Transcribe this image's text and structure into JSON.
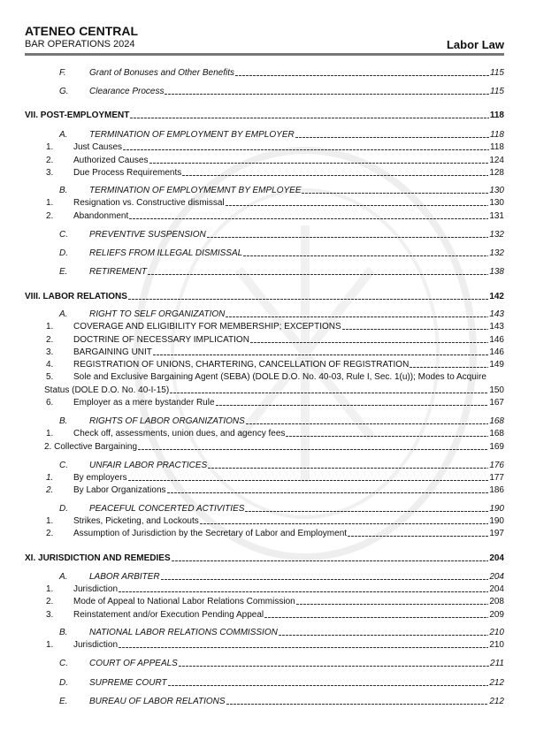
{
  "header": {
    "org": "ATENEO CENTRAL",
    "sub": "BAR OPERATIONS 2024",
    "subject": "Labor Law"
  },
  "entries": [
    {
      "t": "sec",
      "m": "F.",
      "l": "Grant of Bonuses and Other Benefits",
      "p": "115"
    },
    {
      "t": "sec",
      "m": "G.",
      "l": "Clearance Process",
      "p": "115"
    },
    {
      "t": "part",
      "m": "",
      "l": "VII. POST-EMPLOYMENT",
      "p": "118"
    },
    {
      "t": "sec",
      "m": "A.",
      "l": "TERMINATION OF EMPLOYMENT BY EMPLOYER",
      "p": "118"
    },
    {
      "t": "num",
      "m": "1.",
      "l": "Just Causes",
      "p": "118"
    },
    {
      "t": "num",
      "m": "2.",
      "l": "Authorized Causes",
      "p": "124"
    },
    {
      "t": "num",
      "m": "3.",
      "l": "Due Process Requirements",
      "p": "128"
    },
    {
      "t": "sec",
      "m": "B.",
      "l": "TERMINATION OF EMPLOYMEMNT BY EMPLOYEE",
      "p": "130"
    },
    {
      "t": "num",
      "m": "1.",
      "l": "Resignation vs. Constructive dismissal",
      "p": "130"
    },
    {
      "t": "num",
      "m": "2.",
      "l": "Abandonment",
      "p": "131"
    },
    {
      "t": "sec",
      "m": "C.",
      "l": "PREVENTIVE SUSPENSION",
      "p": "132"
    },
    {
      "t": "sec",
      "m": "D.",
      "l": "RELIEFS FROM ILLEGAL DISMISSAL",
      "p": "132"
    },
    {
      "t": "sec",
      "m": "E.",
      "l": "RETIREMENT",
      "p": "138"
    },
    {
      "t": "part",
      "m": "",
      "l": "VIII. LABOR RELATIONS",
      "p": "142"
    },
    {
      "t": "sec",
      "m": "A.",
      "l": "RIGHT TO SELF ORGANIZATION",
      "p": "143"
    },
    {
      "t": "num",
      "m": "1.",
      "l": "COVERAGE AND ELIGIBILITY FOR MEMBERSHIP; EXCEPTIONS",
      "p": "143"
    },
    {
      "t": "num",
      "m": "2.",
      "l": "DOCTRINE OF NECESSARY IMPLICATION",
      "p": "146"
    },
    {
      "t": "num",
      "m": "3.",
      "l": "BARGAINING UNIT",
      "p": "146"
    },
    {
      "t": "num",
      "m": "4.",
      "l": "REGISTRATION OF UNIONS, CHARTERING, CANCELLATION OF REGISTRATION",
      "p": "149"
    },
    {
      "t": "wrap1",
      "m": "5.",
      "l": "Sole and Exclusive Bargaining Agent (SEBA) (DOLE D.O. No. 40-03, Rule I, Sec. 1(u)); Modes to Acquire",
      "p": ""
    },
    {
      "t": "wrap2",
      "m": "",
      "l": "Status (DOLE D.O. No. 40-I-15)",
      "p": "150"
    },
    {
      "t": "num",
      "m": "6.",
      "l": "Employer as a mere bystander Rule",
      "p": "167"
    },
    {
      "t": "sec",
      "m": "B.",
      "l": "RIGHTS OF LABOR ORGANIZATIONS",
      "p": "168"
    },
    {
      "t": "num",
      "m": "1.",
      "l": "Check off, assessments, union dues, and agency fees",
      "p": "168"
    },
    {
      "t": "wrap2",
      "m": "",
      "l": "2. Collective Bargaining",
      "p": "169"
    },
    {
      "t": "sec",
      "m": "C.",
      "l": "UNFAIR LABOR PRACTICES",
      "p": "176"
    },
    {
      "t": "numi",
      "m": "1.",
      "l": "By employers",
      "p": "177"
    },
    {
      "t": "numi",
      "m": "2.",
      "l": "By Labor Organizations",
      "p": "186"
    },
    {
      "t": "sec",
      "m": "D.",
      "l": "PEACEFUL CONCERTED ACTIVITIES",
      "p": "190"
    },
    {
      "t": "num",
      "m": "1.",
      "l": "Strikes, Picketing, and Lockouts",
      "p": "190"
    },
    {
      "t": "num",
      "m": "2.",
      "l": "Assumption of Jurisdiction by the Secretary of Labor and Employment",
      "p": "197"
    },
    {
      "t": "part",
      "m": "",
      "l": "XI. JURISDICTION AND REMEDIES",
      "p": "204"
    },
    {
      "t": "sec",
      "m": "A.",
      "l": "LABOR ARBITER",
      "p": "204"
    },
    {
      "t": "num",
      "m": "1.",
      "l": "Jurisdiction",
      "p": "204"
    },
    {
      "t": "num",
      "m": "2.",
      "l": "Mode of Appeal to National Labor Relations Commission",
      "p": "208"
    },
    {
      "t": "num",
      "m": "3.",
      "l": "Reinstatement and/or Execution Pending Appeal",
      "p": "209"
    },
    {
      "t": "sec",
      "m": "B.",
      "l": "NATIONAL LABOR RELATIONS COMMISSION",
      "p": "210"
    },
    {
      "t": "num",
      "m": "1.",
      "l": "Jurisdiction",
      "p": "210"
    },
    {
      "t": "sec",
      "m": "C.",
      "l": "COURT OF APPEALS",
      "p": "211"
    },
    {
      "t": "sec",
      "m": "D.",
      "l": "SUPREME COURT",
      "p": "212"
    },
    {
      "t": "sec",
      "m": "E.",
      "l": "BUREAU OF LABOR RELATIONS",
      "p": "212"
    }
  ]
}
